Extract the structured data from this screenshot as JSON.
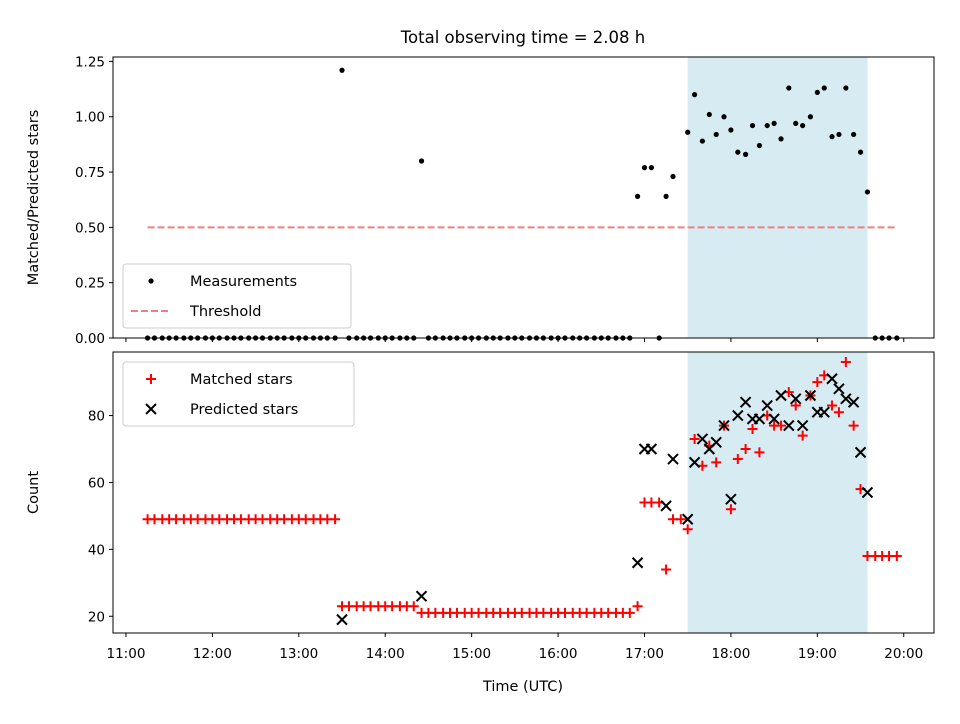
{
  "chart_data": {
    "title": "Total observing time = 2.08 h",
    "xlabel": "Time (UTC)",
    "x_ticks": [
      "11:00",
      "12:00",
      "13:00",
      "14:00",
      "15:00",
      "16:00",
      "17:00",
      "18:00",
      "19:00",
      "20:00"
    ],
    "x_tick_hours": [
      11,
      12,
      13,
      14,
      15,
      16,
      17,
      18,
      19,
      20
    ],
    "xlim": [
      10.85,
      20.35
    ],
    "shaded_interval": [
      17.5,
      19.58
    ],
    "shade_color": "#add8e6",
    "panels": [
      {
        "type": "scatter",
        "ylabel": "Matched/Predicted stars",
        "ylim": [
          0,
          1.27
        ],
        "y_ticks": [
          "0.00",
          "0.25",
          "0.50",
          "0.75",
          "1.00",
          "1.25"
        ],
        "y_tick_values": [
          0,
          0.25,
          0.5,
          0.75,
          1.0,
          1.25
        ],
        "legend_position": "lower-left",
        "series": [
          {
            "name": "Measurements",
            "marker": "dot",
            "color": "#000000",
            "x": [
              11.25,
              11.33,
              11.42,
              11.5,
              11.58,
              11.67,
              11.75,
              11.83,
              11.92,
              12.0,
              12.08,
              12.17,
              12.25,
              12.33,
              12.42,
              12.5,
              12.58,
              12.67,
              12.75,
              12.83,
              12.92,
              13.0,
              13.08,
              13.17,
              13.25,
              13.33,
              13.42,
              13.5,
              13.58,
              13.67,
              13.75,
              13.83,
              13.92,
              14.0,
              14.08,
              14.17,
              14.25,
              14.33,
              14.42,
              14.5,
              14.58,
              14.67,
              14.75,
              14.83,
              14.92,
              15.0,
              15.08,
              15.17,
              15.25,
              15.33,
              15.42,
              15.5,
              15.58,
              15.67,
              15.75,
              15.83,
              15.92,
              16.0,
              16.08,
              16.17,
              16.25,
              16.33,
              16.42,
              16.5,
              16.58,
              16.67,
              16.75,
              16.83,
              16.92,
              17.0,
              17.08,
              17.17,
              17.25,
              17.33,
              17.5,
              17.58,
              17.67,
              17.75,
              17.83,
              17.92,
              18.0,
              18.08,
              18.17,
              18.25,
              18.33,
              18.42,
              18.5,
              18.58,
              18.67,
              18.75,
              18.83,
              18.92,
              19.0,
              19.08,
              19.17,
              19.25,
              19.33,
              19.42,
              19.5,
              19.58,
              19.67,
              19.75,
              19.83,
              19.92
            ],
            "y": [
              0,
              0,
              0,
              0,
              0,
              0,
              0,
              0,
              0,
              0,
              0,
              0,
              0,
              0,
              0,
              0,
              0,
              0,
              0,
              0,
              0,
              0,
              0,
              0,
              0,
              0,
              0,
              1.21,
              0,
              0,
              0,
              0,
              0,
              0,
              0,
              0,
              0,
              0,
              0.8,
              0,
              0,
              0,
              0,
              0,
              0,
              0,
              0,
              0,
              0,
              0,
              0,
              0,
              0,
              0,
              0,
              0,
              0,
              0,
              0,
              0,
              0,
              0,
              0,
              0,
              0,
              0,
              0,
              0,
              0.64,
              0.77,
              0.77,
              0,
              0.64,
              0.73,
              0.93,
              1.1,
              0.89,
              1.01,
              0.92,
              1.0,
              0.94,
              0.84,
              0.83,
              0.96,
              0.87,
              0.96,
              0.97,
              0.9,
              1.13,
              0.97,
              0.96,
              1.0,
              1.11,
              1.13,
              0.91,
              0.92,
              1.13,
              0.92,
              0.84,
              0.66,
              0,
              0,
              0,
              0
            ]
          },
          {
            "name": "Threshold",
            "marker": "dashed-line",
            "color": "#f08080",
            "x": [
              11.25,
              19.92
            ],
            "y": [
              0.5,
              0.5
            ]
          }
        ]
      },
      {
        "type": "scatter",
        "ylabel": "Count",
        "ylim": [
          15,
          99
        ],
        "y_ticks": [
          "20",
          "40",
          "60",
          "80"
        ],
        "y_tick_values": [
          20,
          40,
          60,
          80
        ],
        "legend_position": "upper-left",
        "series": [
          {
            "name": "Matched stars",
            "marker": "plus",
            "color": "#ff0000",
            "x": [
              11.25,
              11.33,
              11.42,
              11.5,
              11.58,
              11.67,
              11.75,
              11.83,
              11.92,
              12.0,
              12.08,
              12.17,
              12.25,
              12.33,
              12.42,
              12.5,
              12.58,
              12.67,
              12.75,
              12.83,
              12.92,
              13.0,
              13.08,
              13.17,
              13.25,
              13.33,
              13.42,
              13.5,
              13.58,
              13.67,
              13.75,
              13.83,
              13.92,
              14.0,
              14.08,
              14.17,
              14.25,
              14.33,
              14.42,
              14.5,
              14.58,
              14.67,
              14.75,
              14.83,
              14.92,
              15.0,
              15.08,
              15.17,
              15.25,
              15.33,
              15.42,
              15.5,
              15.58,
              15.67,
              15.75,
              15.83,
              15.92,
              16.0,
              16.08,
              16.17,
              16.25,
              16.33,
              16.42,
              16.5,
              16.58,
              16.67,
              16.75,
              16.83,
              16.92,
              17.0,
              17.08,
              17.17,
              17.25,
              17.33,
              17.42,
              17.5,
              17.58,
              17.67,
              17.75,
              17.83,
              17.92,
              18.0,
              18.08,
              18.17,
              18.25,
              18.33,
              18.42,
              18.5,
              18.58,
              18.67,
              18.75,
              18.83,
              18.92,
              19.0,
              19.08,
              19.17,
              19.25,
              19.33,
              19.42,
              19.5,
              19.58,
              19.67,
              19.75,
              19.83,
              19.92
            ],
            "y": [
              49,
              49,
              49,
              49,
              49,
              49,
              49,
              49,
              49,
              49,
              49,
              49,
              49,
              49,
              49,
              49,
              49,
              49,
              49,
              49,
              49,
              49,
              49,
              49,
              49,
              49,
              49,
              23,
              23,
              23,
              23,
              23,
              23,
              23,
              23,
              23,
              23,
              23,
              21,
              21,
              21,
              21,
              21,
              21,
              21,
              21,
              21,
              21,
              21,
              21,
              21,
              21,
              21,
              21,
              21,
              21,
              21,
              21,
              21,
              21,
              21,
              21,
              21,
              21,
              21,
              21,
              21,
              21,
              23,
              54,
              54,
              54,
              34,
              49,
              49,
              46,
              73,
              65,
              71,
              66,
              77,
              52,
              67,
              70,
              76,
              69,
              80,
              77,
              77,
              87,
              83,
              74,
              86,
              90,
              92,
              83,
              81,
              96,
              77,
              58,
              38,
              38,
              38,
              38,
              38
            ]
          },
          {
            "name": "Predicted stars",
            "marker": "x",
            "color": "#000000",
            "x": [
              13.5,
              14.42,
              16.92,
              17.0,
              17.08,
              17.25,
              17.33,
              17.5,
              17.58,
              17.67,
              17.75,
              17.83,
              17.92,
              18.0,
              18.08,
              18.17,
              18.25,
              18.33,
              18.42,
              18.5,
              18.58,
              18.67,
              18.75,
              18.83,
              18.92,
              19.0,
              19.08,
              19.17,
              19.25,
              19.33,
              19.42,
              19.5,
              19.58
            ],
            "y": [
              19,
              26,
              36,
              70,
              70,
              53,
              67,
              49,
              66,
              73,
              70,
              72,
              77,
              55,
              80,
              84,
              79,
              79,
              83,
              79,
              86,
              77,
              85,
              77,
              86,
              81,
              81,
              91,
              88,
              85,
              84,
              69,
              57
            ]
          }
        ]
      }
    ]
  }
}
